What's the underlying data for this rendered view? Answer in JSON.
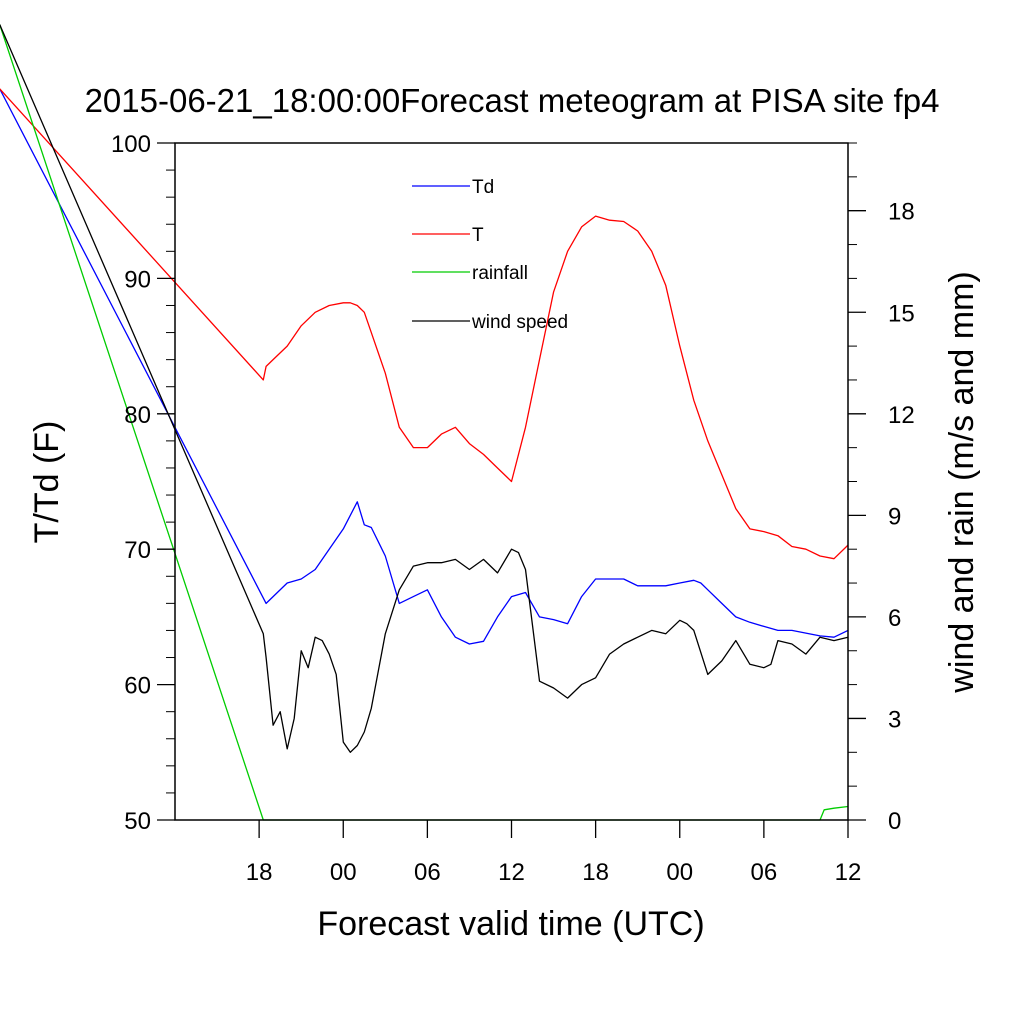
{
  "chart_data": {
    "type": "line",
    "title": "2015-06-21_18:00:00Forecast meteogram at PISA site fp4",
    "xlabel": "Forecast valid time (UTC)",
    "ylabel_left": "T/Td (F)",
    "ylabel_right": "wind and rain (m/s and mm)",
    "x_unit": "hours since 2015-06-21 18:00 UTC",
    "xlim": [
      -6,
      42
    ],
    "x_ticks": [
      {
        "x": 0,
        "label": "18"
      },
      {
        "x": 6,
        "label": "00"
      },
      {
        "x": 12,
        "label": "06"
      },
      {
        "x": 18,
        "label": "12"
      },
      {
        "x": 24,
        "label": "18"
      },
      {
        "x": 30,
        "label": "00"
      },
      {
        "x": 36,
        "label": "06"
      },
      {
        "x": 42,
        "label": "12"
      }
    ],
    "ylim_left": [
      50,
      100
    ],
    "yticks_left": [
      50,
      60,
      70,
      80,
      90,
      100
    ],
    "ylim_right": [
      0,
      20
    ],
    "yticks_right": [
      0,
      3,
      6,
      9,
      12,
      15,
      18
    ],
    "grid": false,
    "legend_position": "top-center",
    "series": [
      {
        "name": "Td",
        "axis": "left",
        "color": "#0000ff",
        "x": [
          -18.5,
          0.5,
          1,
          2,
          3,
          4,
          5,
          6,
          7,
          7.5,
          8,
          9,
          10,
          11,
          12,
          13,
          14,
          15,
          16,
          17,
          18,
          19,
          20,
          21,
          22,
          23,
          24,
          25,
          26,
          27,
          28,
          29,
          30,
          31,
          31.5,
          32,
          33,
          34,
          35,
          36,
          37,
          38,
          39,
          40,
          41,
          42
        ],
        "y": [
          104,
          66,
          66.5,
          67.5,
          67.8,
          68.5,
          70,
          71.5,
          73.5,
          71.8,
          71.6,
          69.5,
          66,
          66.5,
          67,
          65,
          63.5,
          63,
          63.2,
          65,
          66.5,
          66.8,
          65,
          64.8,
          64.5,
          66.5,
          67.8,
          67.8,
          67.8,
          67.3,
          67.3,
          67.3,
          67.5,
          67.7,
          67.5,
          67,
          66,
          65,
          64.6,
          64.3,
          64,
          64,
          63.8,
          63.6,
          63.5,
          64
        ]
      },
      {
        "name": "T",
        "axis": "left",
        "color": "#ff0000",
        "x": [
          -18.5,
          0.3,
          0.5,
          1,
          2,
          3,
          4,
          5,
          6,
          6.5,
          7,
          7.5,
          8,
          9,
          10,
          11,
          12,
          13,
          14,
          15,
          16,
          17,
          18,
          19,
          20,
          21,
          22,
          23,
          24,
          25,
          26,
          27,
          28,
          29,
          30,
          31,
          32,
          33,
          34,
          35,
          36,
          37,
          38,
          39,
          40,
          41,
          42
        ],
        "y": [
          104,
          82.5,
          83.5,
          84,
          85,
          86.5,
          87.5,
          88,
          88.2,
          88.2,
          88,
          87.5,
          86,
          83,
          79,
          77.5,
          77.5,
          78.5,
          79,
          77.8,
          77,
          76,
          75,
          79,
          84,
          89,
          92,
          93.8,
          94.6,
          94.3,
          94.2,
          93.5,
          92,
          89.5,
          85,
          81,
          78,
          75.5,
          73,
          71.5,
          71.3,
          71,
          70.2,
          70,
          69.5,
          69.3,
          70.3
        ]
      },
      {
        "name": "rainfall",
        "axis": "right",
        "color": "#00cc00",
        "x": [
          -18.5,
          0.3,
          40,
          40.3,
          41,
          42
        ],
        "y": [
          23.5,
          0,
          0,
          0.3,
          0.35,
          0.4
        ]
      },
      {
        "name": "wind speed",
        "axis": "right",
        "color": "#000000",
        "x": [
          -18.5,
          0.3,
          0.5,
          1,
          1.5,
          2,
          2.5,
          3,
          3.5,
          4,
          4.5,
          5,
          5.5,
          6,
          6.5,
          7,
          7.5,
          8,
          9,
          10,
          11,
          12,
          13,
          14,
          15,
          16,
          17,
          18,
          18.5,
          19,
          20,
          21,
          22,
          23,
          24,
          25,
          26,
          27,
          28,
          29,
          30,
          30.5,
          31,
          32,
          33,
          34,
          35,
          36,
          36.5,
          37,
          38,
          39,
          40,
          41,
          42
        ],
        "y": [
          23.5,
          5.5,
          4.8,
          2.8,
          3.2,
          2.1,
          3.0,
          5.0,
          4.5,
          5.4,
          5.3,
          4.9,
          4.3,
          2.3,
          2.0,
          2.2,
          2.6,
          3.3,
          5.5,
          6.8,
          7.5,
          7.6,
          7.6,
          7.7,
          7.4,
          7.7,
          7.3,
          8.0,
          7.9,
          7.4,
          4.1,
          3.9,
          3.6,
          4.0,
          4.2,
          4.9,
          5.2,
          5.4,
          5.6,
          5.5,
          5.9,
          5.8,
          5.6,
          4.3,
          4.7,
          5.3,
          4.6,
          4.5,
          4.6,
          5.3,
          5.2,
          4.9,
          5.4,
          5.3,
          5.4
        ]
      }
    ]
  }
}
